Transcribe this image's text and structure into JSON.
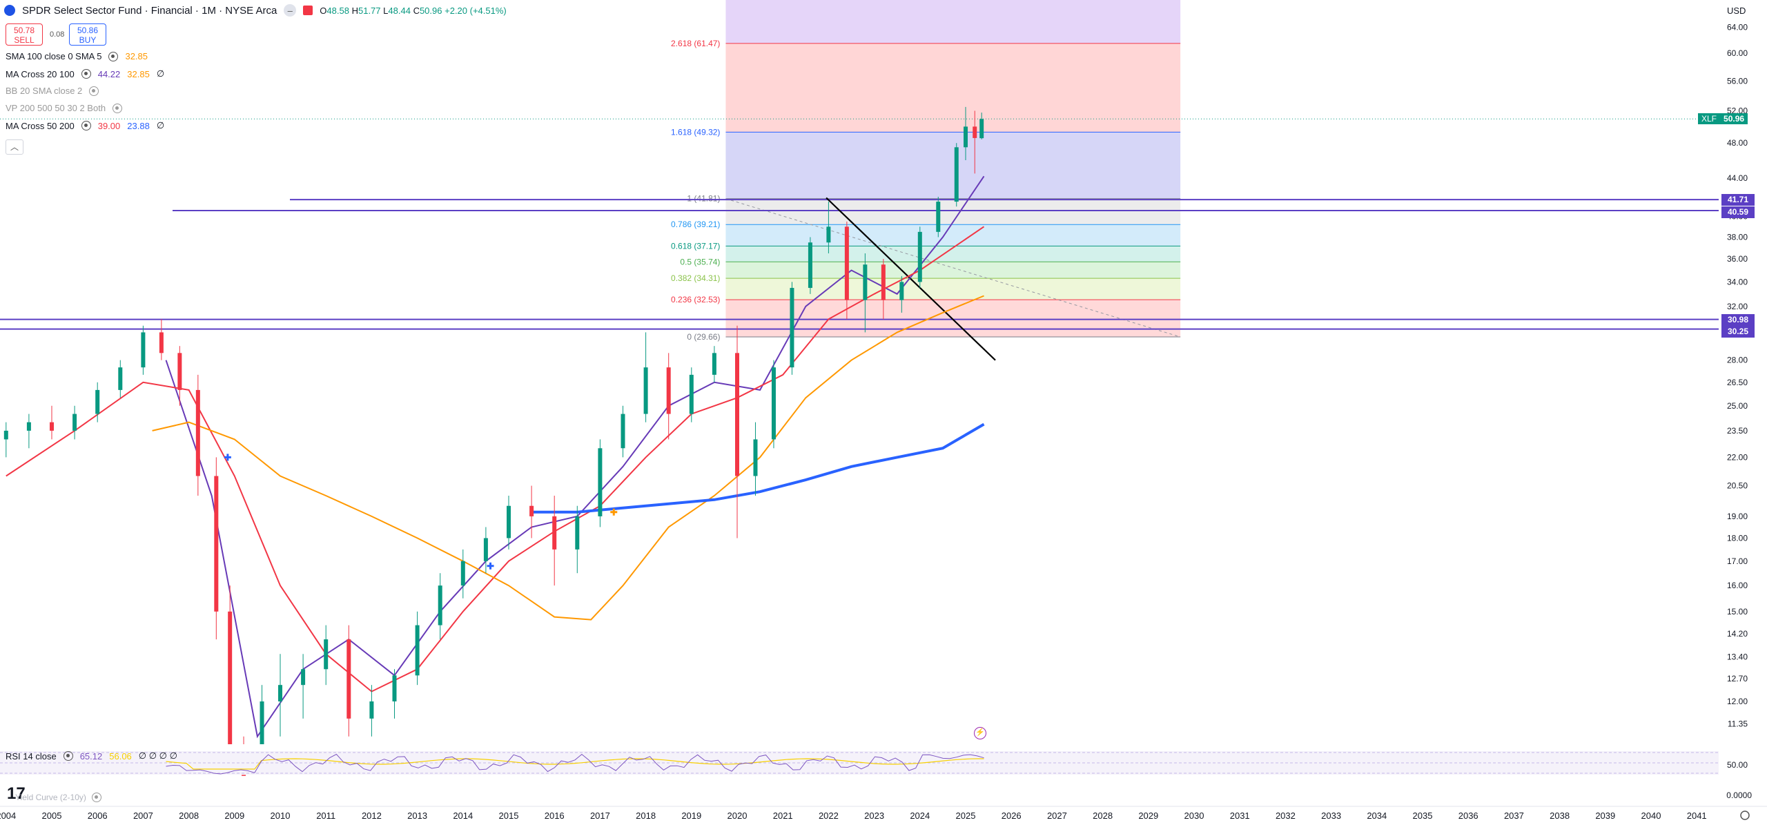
{
  "header": {
    "symbol_title": "SPDR Select Sector Fund · Financial · 1M · NYSE Arca",
    "open_label": "O",
    "open": "48.58",
    "high_label": "H",
    "high": "51.77",
    "low_label": "L",
    "low": "48.44",
    "close_label": "C",
    "close": "50.96",
    "change": "+2.20 (+4.51%)",
    "sell_price": "50.78",
    "sell_label": "SELL",
    "spread": "0.08",
    "buy_price": "50.86",
    "buy_label": "BUY"
  },
  "indicators": [
    {
      "name": "SMA 100 close 0 SMA 5",
      "values": [
        "32.85"
      ],
      "colors": [
        "#ff9800"
      ],
      "muted": false
    },
    {
      "name": "MA Cross 20 100",
      "values": [
        "44.22",
        "32.85",
        "∅"
      ],
      "colors": [
        "#673ab7",
        "#ff9800",
        "#131722"
      ],
      "muted": false
    },
    {
      "name": "BB 20 SMA close 2",
      "values": [],
      "colors": [],
      "muted": true
    },
    {
      "name": "VP 200 500 50 30 2 Both",
      "values": [],
      "colors": [],
      "muted": true
    },
    {
      "name": "MA Cross 50 200",
      "values": [
        "39.00",
        "23.88",
        "∅"
      ],
      "colors": [
        "#f23645",
        "#2962ff",
        "#131722"
      ],
      "muted": false
    }
  ],
  "collapse_icon": "chevron-up-icon",
  "currency": "USD",
  "price_axis": [
    "64.00",
    "60.00",
    "56.00",
    "52.00",
    "48.00",
    "44.00",
    "40.00",
    "38.00",
    "36.00",
    "34.00",
    "32.00",
    "28.00",
    "26.50",
    "25.00",
    "23.50",
    "22.00",
    "20.50",
    "19.00",
    "18.00",
    "17.00",
    "16.00",
    "15.00",
    "14.20",
    "13.40",
    "12.70",
    "12.00",
    "11.35"
  ],
  "price_tags": [
    {
      "ticker": "XLF",
      "value": "50.96",
      "color": "#089981"
    },
    {
      "value": "41.71",
      "color": "#5b3fc4"
    },
    {
      "value": "40.59",
      "color": "#5b3fc4"
    },
    {
      "value": "30.98",
      "color": "#5b3fc4"
    },
    {
      "value": "30.25",
      "color": "#5b3fc4"
    }
  ],
  "fib_levels": [
    {
      "label": "2.618 (61.47)",
      "value": 61.47,
      "color": "#f23645"
    },
    {
      "label": "1.618 (49.32)",
      "value": 49.32,
      "color": "#2962ff"
    },
    {
      "label": "1 (41.81)",
      "value": 41.81,
      "color": "#787b86"
    },
    {
      "label": "0.786 (39.21)",
      "value": 39.21,
      "color": "#2196f3"
    },
    {
      "label": "0.618 (37.17)",
      "value": 37.17,
      "color": "#089981"
    },
    {
      "label": "0.5 (35.74)",
      "value": 35.74,
      "color": "#4caf50"
    },
    {
      "label": "0.382 (34.31)",
      "value": 34.31,
      "color": "#8bc34a"
    },
    {
      "label": "0.236 (32.53)",
      "value": 32.53,
      "color": "#f23645"
    },
    {
      "label": "0 (29.66)",
      "value": 29.66,
      "color": "#787b86"
    }
  ],
  "rsi": {
    "name": "RSI 14 close",
    "value": "65.12",
    "ma_value": "56.06",
    "extra": "∅ ∅ ∅ ∅",
    "axis": [
      "50.00"
    ],
    "yield_label": "Yield Curve (2-10y)",
    "yield_axis": "0.0000"
  },
  "time_axis": [
    "2004",
    "2005",
    "2006",
    "2007",
    "2008",
    "2009",
    "2010",
    "2011",
    "2012",
    "2013",
    "2014",
    "2015",
    "2016",
    "2017",
    "2018",
    "2019",
    "2020",
    "2021",
    "2022",
    "2023",
    "2024",
    "2025",
    "2026",
    "2027",
    "2028",
    "2029",
    "2030",
    "2031",
    "2032",
    "2033",
    "2034",
    "2035",
    "2036",
    "2037",
    "2038",
    "2039",
    "2040",
    "2041"
  ],
  "logo": "17",
  "chart_data": {
    "type": "candlestick",
    "title": "SPDR Select Sector Fund · Financial · 1M · NYSE Arca",
    "scale": "log",
    "ylim": [
      10.7,
      66
    ],
    "xlim": [
      2004.0,
      2042.0
    ],
    "candles_approx": [
      [
        2004.0,
        23.0,
        24.0,
        22.0,
        23.5
      ],
      [
        2004.5,
        23.5,
        24.5,
        22.5,
        24.0
      ],
      [
        2005.0,
        24.0,
        25.0,
        23.0,
        23.5
      ],
      [
        2005.5,
        23.5,
        25.0,
        23.0,
        24.5
      ],
      [
        2006.0,
        24.5,
        26.5,
        24.0,
        26.0
      ],
      [
        2006.5,
        26.0,
        28.0,
        25.5,
        27.5
      ],
      [
        2007.0,
        27.5,
        30.5,
        27.0,
        30.0
      ],
      [
        2007.4,
        30.0,
        31.0,
        28.0,
        28.5
      ],
      [
        2007.8,
        28.5,
        29.0,
        25.0,
        26.0
      ],
      [
        2008.2,
        26.0,
        27.0,
        20.0,
        21.0
      ],
      [
        2008.6,
        21.0,
        22.0,
        14.0,
        15.0
      ],
      [
        2008.9,
        15.0,
        16.0,
        9.0,
        10.0
      ],
      [
        2009.2,
        10.0,
        11.0,
        8.0,
        9.5
      ],
      [
        2009.6,
        9.5,
        12.5,
        9.0,
        12.0
      ],
      [
        2010.0,
        12.0,
        13.5,
        11.0,
        12.5
      ],
      [
        2010.5,
        12.5,
        13.5,
        11.5,
        13.0
      ],
      [
        2011.0,
        13.0,
        14.5,
        12.5,
        14.0
      ],
      [
        2011.5,
        14.0,
        14.5,
        11.0,
        11.5
      ],
      [
        2012.0,
        11.5,
        12.5,
        11.0,
        12.0
      ],
      [
        2012.5,
        12.0,
        13.0,
        11.5,
        12.8
      ],
      [
        2013.0,
        12.8,
        15.0,
        12.5,
        14.5
      ],
      [
        2013.5,
        14.5,
        16.5,
        14.0,
        16.0
      ],
      [
        2014.0,
        16.0,
        17.5,
        15.5,
        17.0
      ],
      [
        2014.5,
        17.0,
        18.5,
        16.5,
        18.0
      ],
      [
        2015.0,
        18.0,
        20.0,
        17.5,
        19.5
      ],
      [
        2015.5,
        19.5,
        20.5,
        18.0,
        19.0
      ],
      [
        2016.0,
        19.0,
        20.0,
        16.0,
        17.5
      ],
      [
        2016.5,
        17.5,
        19.5,
        16.5,
        19.0
      ],
      [
        2017.0,
        19.0,
        23.0,
        18.5,
        22.5
      ],
      [
        2017.5,
        22.5,
        25.0,
        22.0,
        24.5
      ],
      [
        2018.0,
        24.5,
        30.0,
        24.0,
        27.5
      ],
      [
        2018.5,
        27.5,
        28.5,
        23.0,
        24.5
      ],
      [
        2019.0,
        24.5,
        27.5,
        24.0,
        27.0
      ],
      [
        2019.5,
        27.0,
        29.0,
        26.5,
        28.5
      ],
      [
        2020.0,
        28.5,
        30.5,
        18.0,
        21.0
      ],
      [
        2020.4,
        21.0,
        24.0,
        20.0,
        23.0
      ],
      [
        2020.8,
        23.0,
        28.0,
        22.5,
        27.5
      ],
      [
        2021.2,
        27.5,
        34.0,
        27.0,
        33.5
      ],
      [
        2021.6,
        33.5,
        38.0,
        33.0,
        37.5
      ],
      [
        2022.0,
        37.5,
        41.5,
        36.5,
        39.0
      ],
      [
        2022.4,
        39.0,
        39.5,
        31.0,
        32.5
      ],
      [
        2022.8,
        32.5,
        36.5,
        30.0,
        35.5
      ],
      [
        2023.2,
        35.5,
        36.0,
        31.0,
        32.5
      ],
      [
        2023.6,
        32.5,
        34.5,
        31.5,
        34.0
      ],
      [
        2024.0,
        34.0,
        39.0,
        33.5,
        38.5
      ],
      [
        2024.4,
        38.5,
        42.0,
        38.0,
        41.5
      ],
      [
        2024.8,
        41.5,
        48.0,
        41.0,
        47.5
      ],
      [
        2025.0,
        47.5,
        52.5,
        46.0,
        50.0
      ],
      [
        2025.2,
        50.0,
        52.0,
        44.5,
        48.6
      ],
      [
        2025.35,
        48.58,
        51.77,
        48.44,
        50.96
      ]
    ],
    "series": [
      {
        "name": "MA 20",
        "color": "#673ab7",
        "points": [
          [
            2007.5,
            28
          ],
          [
            2008.5,
            20
          ],
          [
            2009.5,
            11
          ],
          [
            2010.5,
            13
          ],
          [
            2011.5,
            14
          ],
          [
            2012.5,
            12.8
          ],
          [
            2013.5,
            15
          ],
          [
            2014.5,
            17
          ],
          [
            2015.5,
            18.5
          ],
          [
            2016.5,
            19
          ],
          [
            2017.5,
            21.5
          ],
          [
            2018.5,
            25
          ],
          [
            2019.5,
            26.5
          ],
          [
            2020.5,
            26
          ],
          [
            2021.5,
            32
          ],
          [
            2022.5,
            35
          ],
          [
            2023.5,
            33
          ],
          [
            2024.5,
            38
          ],
          [
            2025.4,
            44.2
          ]
        ]
      },
      {
        "name": "MA 50",
        "color": "#f23645",
        "points": [
          [
            2004.0,
            21
          ],
          [
            2005.5,
            23.5
          ],
          [
            2007.0,
            26.5
          ],
          [
            2008.0,
            26
          ],
          [
            2009.0,
            21
          ],
          [
            2010.0,
            16
          ],
          [
            2011.0,
            13.5
          ],
          [
            2012.0,
            12.3
          ],
          [
            2013.0,
            13
          ],
          [
            2014.0,
            15
          ],
          [
            2015.0,
            17
          ],
          [
            2016.0,
            18.3
          ],
          [
            2017.0,
            19.5
          ],
          [
            2018.0,
            22
          ],
          [
            2019.0,
            24.5
          ],
          [
            2020.0,
            25.5
          ],
          [
            2021.0,
            27
          ],
          [
            2022.0,
            31
          ],
          [
            2023.0,
            33
          ],
          [
            2024.0,
            35
          ],
          [
            2025.4,
            39.0
          ]
        ]
      },
      {
        "name": "MA 100",
        "color": "#ff9800",
        "points": [
          [
            2007.2,
            23.5
          ],
          [
            2008.0,
            24
          ],
          [
            2009.0,
            23
          ],
          [
            2010.0,
            21
          ],
          [
            2011.0,
            20
          ],
          [
            2012.0,
            19
          ],
          [
            2013.0,
            18
          ],
          [
            2014.0,
            17
          ],
          [
            2015.0,
            16
          ],
          [
            2016.0,
            14.8
          ],
          [
            2016.8,
            14.7
          ],
          [
            2017.5,
            16
          ],
          [
            2018.5,
            18.5
          ],
          [
            2019.5,
            20
          ],
          [
            2020.5,
            22
          ],
          [
            2021.5,
            25.5
          ],
          [
            2022.5,
            28
          ],
          [
            2023.5,
            30
          ],
          [
            2024.5,
            31.5
          ],
          [
            2025.4,
            32.85
          ]
        ]
      },
      {
        "name": "MA 200",
        "color": "#2962ff",
        "points": [
          [
            2015.5,
            19.2
          ],
          [
            2016.5,
            19.2
          ],
          [
            2017.5,
            19.4
          ],
          [
            2018.5,
            19.6
          ],
          [
            2019.5,
            19.8
          ],
          [
            2020.5,
            20.2
          ],
          [
            2021.5,
            20.8
          ],
          [
            2022.5,
            21.5
          ],
          [
            2023.5,
            22.0
          ],
          [
            2024.5,
            22.5
          ],
          [
            2025.4,
            23.88
          ]
        ]
      }
    ]
  }
}
